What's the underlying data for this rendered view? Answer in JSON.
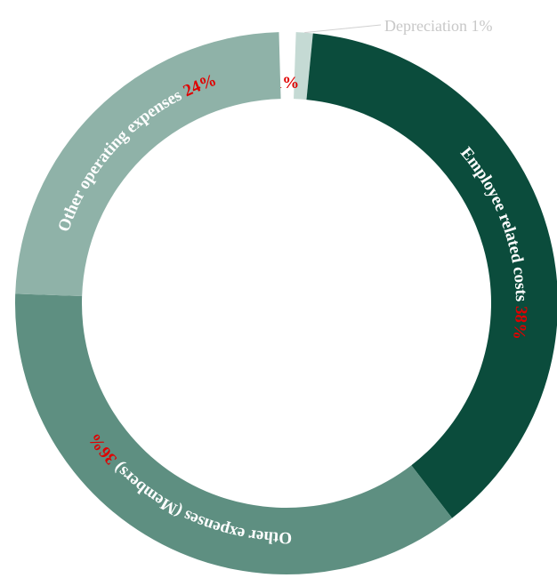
{
  "chart_data": {
    "type": "donut",
    "categories": [
      "Depreciation",
      "Employee related costs",
      "Other expenses (Members)",
      "Other operating expenses"
    ],
    "values": [
      1,
      38,
      36,
      24
    ],
    "value_labels": [
      "1%",
      "38%",
      "36%",
      "24%"
    ],
    "colors": [
      "#c5dad4",
      "#0b4c3c",
      "#5e8f81",
      "#8fb2a8"
    ]
  }
}
